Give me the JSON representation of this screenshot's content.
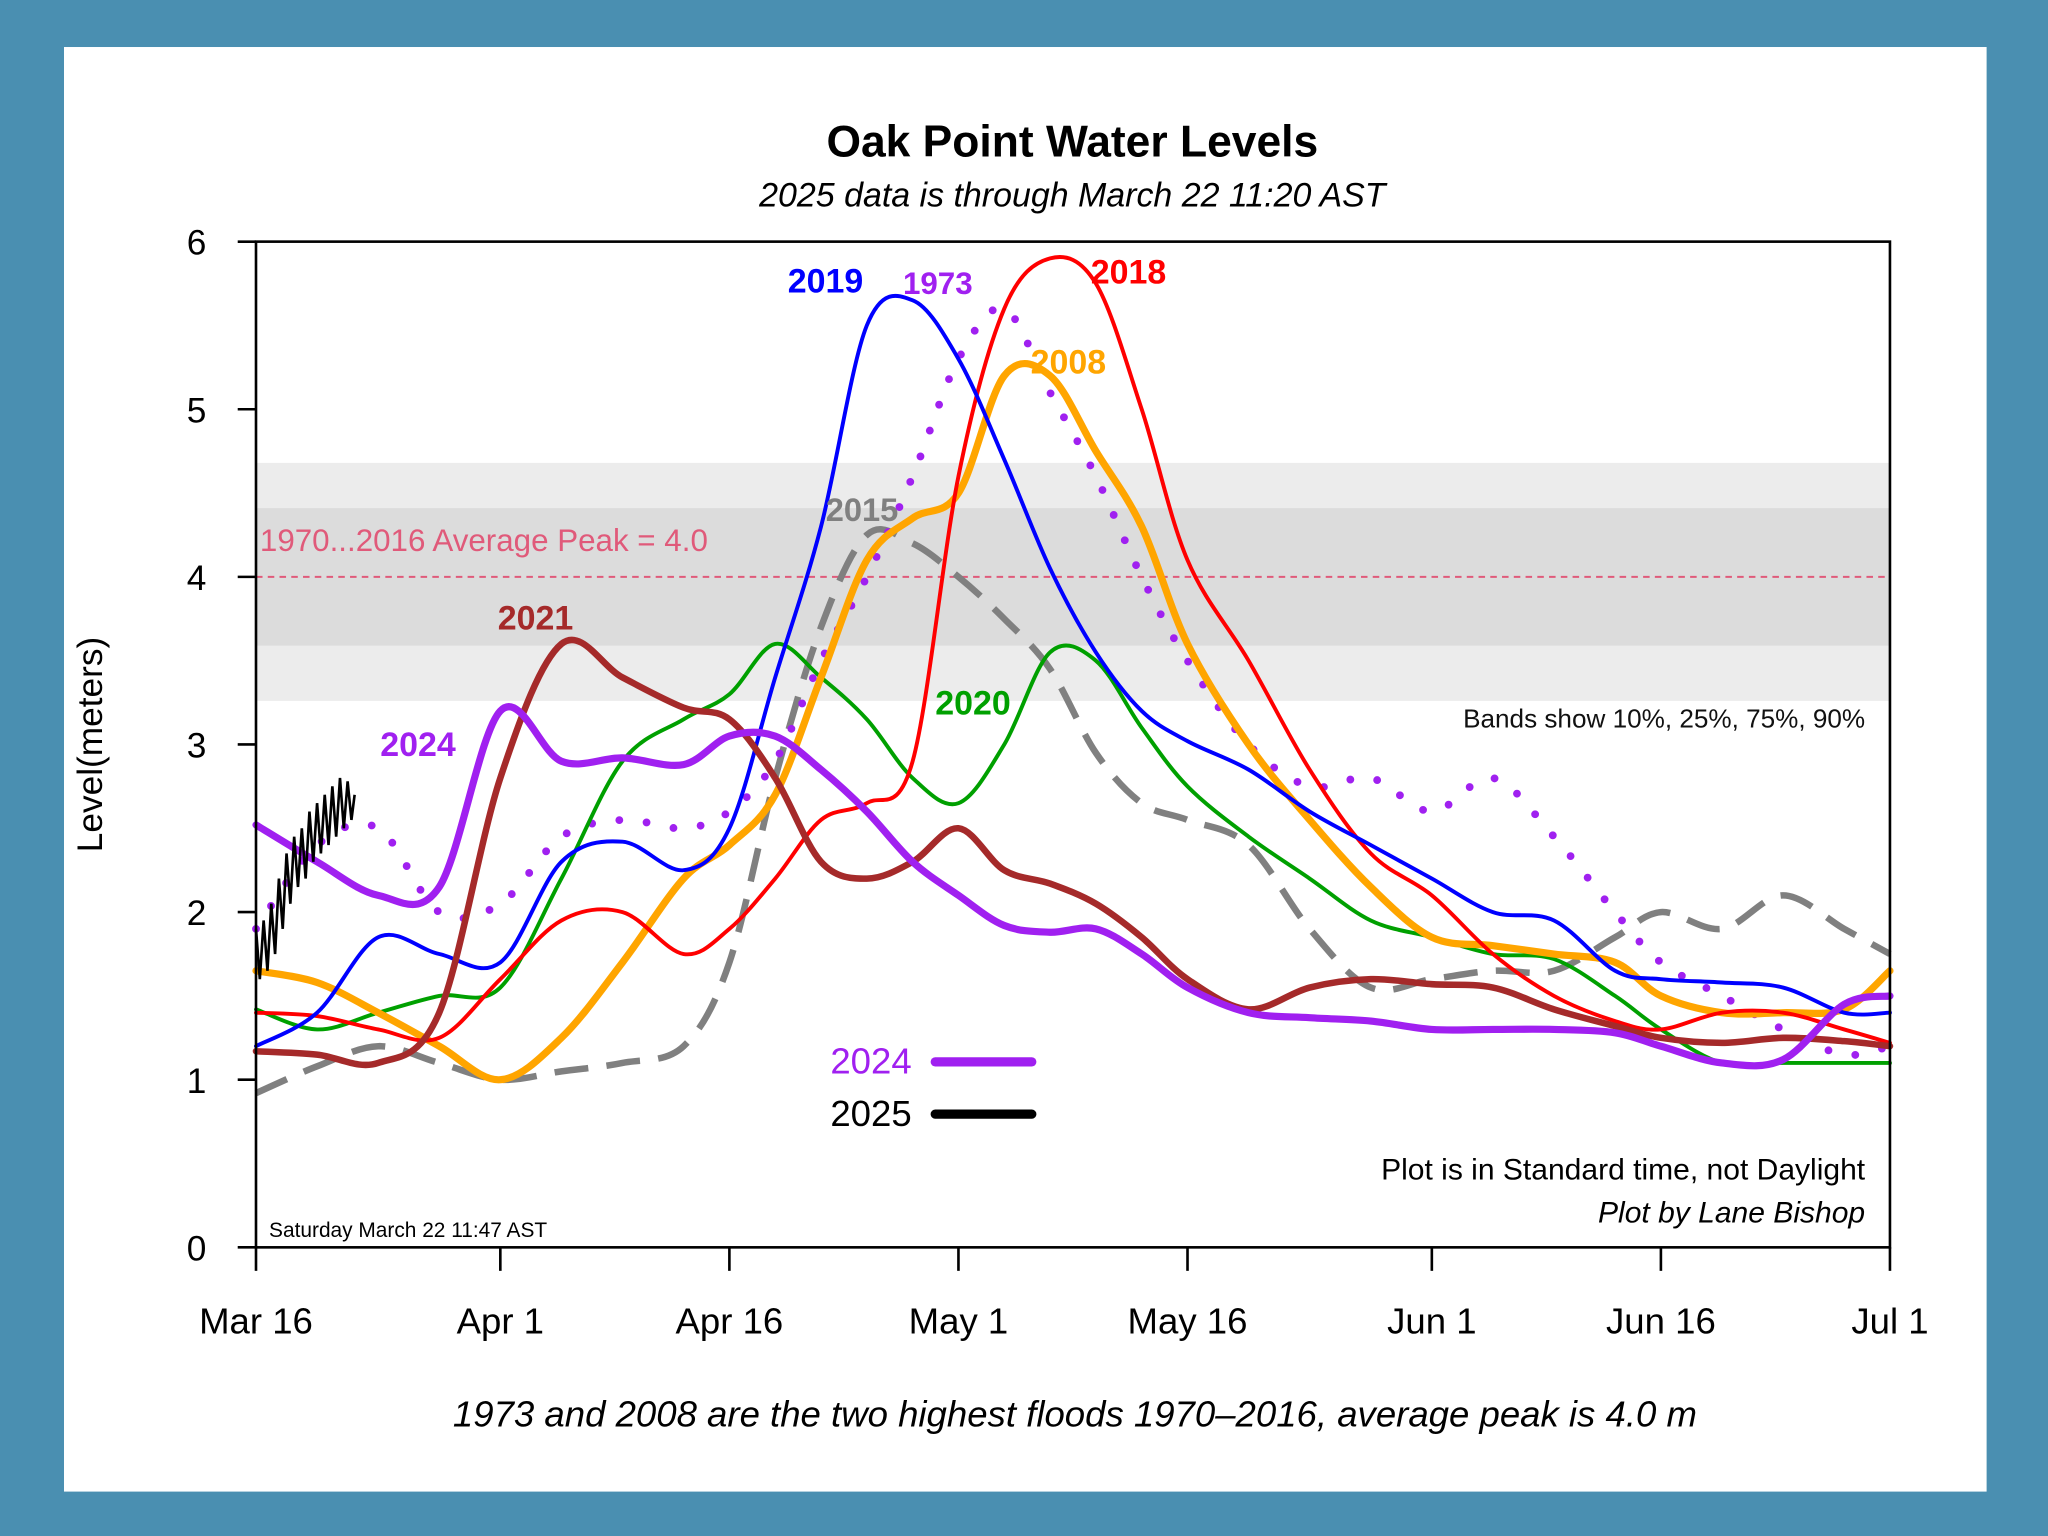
{
  "colors": {
    "background": "#4a8fb1",
    "panel": "#ffffff",
    "band_outer": "#ececec",
    "band_inner": "#dcdcdc",
    "average_line": "#e05a7a"
  },
  "chart_data": {
    "type": "line",
    "title": "Oak Point Water Levels",
    "subtitle": "2025 data is through March 22 11:20 AST",
    "ylabel": "Level(meters)",
    "xlabel": "",
    "ylim": [
      0,
      6
    ],
    "xlim": [
      "03-16",
      "07-01"
    ],
    "yticks": [
      "0",
      "1",
      "2",
      "3",
      "4",
      "5",
      "6"
    ],
    "xticks": [
      {
        "date": "03-16",
        "label": "Mar 16"
      },
      {
        "date": "04-01",
        "label": "Apr 1"
      },
      {
        "date": "04-16",
        "label": "Apr 16"
      },
      {
        "date": "05-01",
        "label": "May 1"
      },
      {
        "date": "05-16",
        "label": "May 16"
      },
      {
        "date": "06-01",
        "label": "Jun 1"
      },
      {
        "date": "06-16",
        "label": "Jun 16"
      },
      {
        "date": "07-01",
        "label": "Jul 1"
      }
    ],
    "grid": false,
    "bands": {
      "p10": 3.26,
      "p25": 3.59,
      "p75": 4.41,
      "p90": 4.68,
      "note": "Bands show 10%, 25%, 75%, 90%"
    },
    "average_peak": {
      "value": 4.0,
      "label": "1970...2016 Average Peak = 4.0"
    },
    "x": [
      "03-16",
      "03-20",
      "03-24",
      "03-28",
      "04-01",
      "04-05",
      "04-09",
      "04-13",
      "04-16",
      "04-19",
      "04-22",
      "04-25",
      "04-28",
      "05-01",
      "05-04",
      "05-07",
      "05-10",
      "05-13",
      "05-16",
      "05-20",
      "05-24",
      "05-28",
      "06-01",
      "06-05",
      "06-09",
      "06-13",
      "06-16",
      "06-20",
      "06-24",
      "06-28",
      "07-01"
    ],
    "series": [
      {
        "name": "2015",
        "color": "#808080",
        "style": "dashed",
        "values": [
          0.92,
          1.08,
          1.2,
          1.1,
          1.0,
          1.05,
          1.1,
          1.2,
          1.7,
          2.8,
          3.7,
          4.25,
          4.2,
          4.0,
          3.75,
          3.45,
          2.95,
          2.65,
          2.55,
          2.4,
          1.9,
          1.55,
          1.6,
          1.65,
          1.65,
          1.85,
          2.0,
          1.9,
          2.1,
          1.9,
          1.75
        ]
      },
      {
        "name": "1973",
        "color": "#a020f0",
        "style": "dotted",
        "values": [
          1.9,
          2.4,
          2.5,
          2.0,
          2.05,
          2.45,
          2.55,
          2.5,
          2.6,
          2.9,
          3.5,
          4.0,
          4.6,
          5.3,
          5.6,
          5.1,
          4.6,
          4.0,
          3.5,
          3.0,
          2.75,
          2.8,
          2.6,
          2.8,
          2.45,
          2.0,
          1.7,
          1.5,
          1.3,
          1.15,
          1.2
        ]
      },
      {
        "name": "2020",
        "color": "#00a000",
        "style": "solid",
        "values": [
          1.42,
          1.3,
          1.4,
          1.5,
          1.55,
          2.2,
          2.9,
          3.15,
          3.3,
          3.6,
          3.4,
          3.15,
          2.8,
          2.65,
          3.0,
          3.55,
          3.5,
          3.1,
          2.75,
          2.45,
          2.2,
          1.95,
          1.85,
          1.75,
          1.72,
          1.5,
          1.3,
          1.1,
          1.1,
          1.1,
          1.1
        ]
      },
      {
        "name": "2008",
        "color": "#ffa500",
        "style": "solid",
        "values": [
          1.65,
          1.58,
          1.4,
          1.2,
          1.0,
          1.25,
          1.7,
          2.2,
          2.4,
          2.7,
          3.4,
          4.1,
          4.35,
          4.5,
          5.2,
          5.2,
          4.75,
          4.3,
          3.6,
          3.0,
          2.55,
          2.15,
          1.85,
          1.8,
          1.75,
          1.7,
          1.5,
          1.4,
          1.4,
          1.42,
          1.65
        ]
      },
      {
        "name": "2018",
        "color": "#ff0000",
        "style": "solid",
        "values": [
          1.4,
          1.38,
          1.3,
          1.25,
          1.6,
          1.95,
          2.0,
          1.75,
          1.9,
          2.2,
          2.55,
          2.65,
          2.9,
          4.6,
          5.6,
          5.9,
          5.75,
          5.0,
          4.1,
          3.5,
          2.85,
          2.35,
          2.1,
          1.75,
          1.5,
          1.35,
          1.3,
          1.4,
          1.4,
          1.3,
          1.22
        ]
      },
      {
        "name": "2019",
        "color": "#0000ff",
        "style": "solid",
        "values": [
          1.2,
          1.4,
          1.85,
          1.75,
          1.7,
          2.3,
          2.42,
          2.25,
          2.5,
          3.4,
          4.3,
          5.5,
          5.65,
          5.3,
          4.7,
          4.05,
          3.55,
          3.2,
          3.02,
          2.85,
          2.6,
          2.4,
          2.2,
          2.0,
          1.95,
          1.65,
          1.6,
          1.58,
          1.55,
          1.4,
          1.4
        ]
      },
      {
        "name": "2021",
        "color": "#a52a2a",
        "style": "solid",
        "values": [
          1.17,
          1.15,
          1.1,
          1.4,
          2.8,
          3.6,
          3.4,
          3.22,
          3.15,
          2.8,
          2.3,
          2.2,
          2.3,
          2.5,
          2.25,
          2.17,
          2.05,
          1.85,
          1.6,
          1.42,
          1.55,
          1.6,
          1.57,
          1.55,
          1.42,
          1.32,
          1.25,
          1.22,
          1.25,
          1.23,
          1.2
        ]
      },
      {
        "name": "2024",
        "color": "#a020f0",
        "style": "solid",
        "values": [
          2.52,
          2.3,
          2.1,
          2.15,
          3.2,
          2.9,
          2.92,
          2.88,
          3.05,
          3.05,
          2.85,
          2.6,
          2.3,
          2.1,
          1.92,
          1.88,
          1.9,
          1.75,
          1.55,
          1.4,
          1.37,
          1.35,
          1.3,
          1.3,
          1.3,
          1.28,
          1.2,
          1.1,
          1.12,
          1.45,
          1.5
        ]
      }
    ],
    "current": {
      "name": "2025",
      "color": "#000000",
      "x": [
        "03-16 00:00",
        "03-16 06:00",
        "03-16 12:00",
        "03-16 18:00",
        "03-17 00:00",
        "03-17 06:00",
        "03-17 12:00",
        "03-17 18:00",
        "03-18 00:00",
        "03-18 06:00",
        "03-18 12:00",
        "03-18 18:00",
        "03-19 00:00",
        "03-19 06:00",
        "03-19 12:00",
        "03-19 18:00",
        "03-20 00:00",
        "03-20 06:00",
        "03-20 12:00",
        "03-20 18:00",
        "03-21 00:00",
        "03-21 06:00",
        "03-21 12:00",
        "03-21 18:00",
        "03-22 00:00",
        "03-22 06:00",
        "03-22 11:00"
      ],
      "values": [
        1.9,
        1.6,
        1.95,
        1.65,
        2.05,
        1.75,
        2.2,
        1.9,
        2.35,
        2.05,
        2.45,
        2.15,
        2.5,
        2.2,
        2.6,
        2.3,
        2.65,
        2.35,
        2.7,
        2.4,
        2.75,
        2.45,
        2.8,
        2.5,
        2.78,
        2.55,
        2.7
      ]
    },
    "legend": [
      {
        "name": "2024",
        "color": "#a020f0"
      },
      {
        "name": "2025",
        "color": "#000000"
      }
    ],
    "legend_placement": "bottom-center",
    "annotations": {
      "timestamp": "Saturday March 22 11:47 AST",
      "time_note": "Plot is in Standard time, not Daylight",
      "credit": "Plot by Lane Bishop",
      "caption": "1973 and 2008 are the two highest floods 1970–2016, average peak is 4.0 m"
    }
  }
}
